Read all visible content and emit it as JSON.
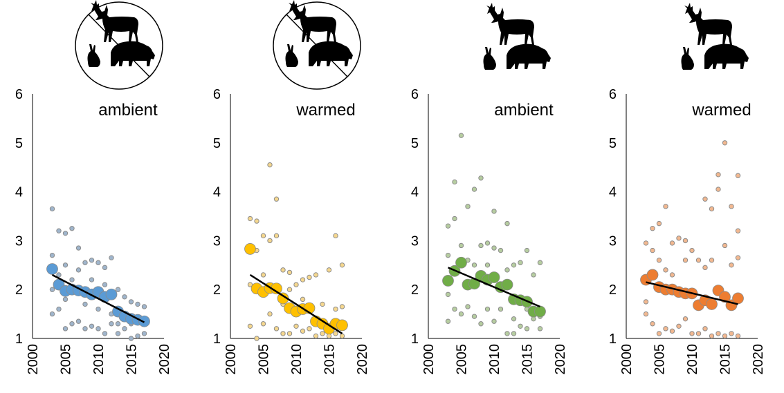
{
  "chart_data": [
    {
      "type": "scatter",
      "title": "ambient",
      "herbivores_excluded": true,
      "xlim": [
        2000,
        2020
      ],
      "xticks": [
        2000,
        2005,
        2010,
        2015,
        2020
      ],
      "ylim": [
        1,
        6
      ],
      "yticks": [
        1,
        2,
        3,
        4,
        5,
        6
      ],
      "series": [
        {
          "color": "#9fb5cc",
          "x": [
            2003,
            2003,
            2003,
            2003,
            2004,
            2004,
            2004,
            2005,
            2005,
            2005,
            2005,
            2006,
            2006,
            2006,
            2007,
            2007,
            2007,
            2008,
            2008,
            2008,
            2009,
            2009,
            2009,
            2010,
            2010,
            2010,
            2011,
            2011,
            2011,
            2012,
            2012,
            2012,
            2013,
            2013,
            2013,
            2014,
            2014,
            2015,
            2015,
            2015,
            2016,
            2016,
            2017,
            2017
          ],
          "values": [
            3.65,
            2.0,
            1.5,
            2.7,
            3.2,
            1.6,
            2.3,
            3.15,
            1.2,
            2.5,
            1.8,
            3.25,
            1.3,
            2.2,
            2.85,
            1.35,
            2.4,
            2.55,
            1.2,
            1.7,
            2.6,
            1.25,
            2.2,
            2.55,
            1.2,
            1.6,
            2.45,
            1.1,
            2.1,
            2.65,
            1.3,
            1.5,
            2.0,
            1.1,
            1.3,
            1.85,
            1.2,
            1.75,
            1.0,
            1.3,
            1.7,
            1.05,
            1.65,
            1.1
          ]
        },
        {
          "color": "#5b9bd5",
          "x": [
            2003,
            2004,
            2005,
            2006,
            2007,
            2008,
            2009,
            2010,
            2011,
            2012,
            2013,
            2014,
            2015,
            2016,
            2017
          ],
          "values": [
            2.42,
            2.1,
            1.97,
            2.0,
            1.98,
            1.95,
            1.9,
            1.95,
            1.85,
            1.9,
            1.55,
            1.45,
            1.4,
            1.38,
            1.35
          ]
        }
      ],
      "trend": {
        "color": "#000000",
        "x": [
          2003,
          2017
        ],
        "values": [
          2.3,
          1.33
        ]
      }
    },
    {
      "type": "scatter",
      "title": "warmed",
      "herbivores_excluded": true,
      "xlim": [
        2000,
        2020
      ],
      "xticks": [
        2000,
        2005,
        2010,
        2015,
        2020
      ],
      "ylim": [
        1,
        6
      ],
      "yticks": [
        1,
        2,
        3,
        4,
        5,
        6
      ],
      "series": [
        {
          "color": "#f5d78e",
          "x": [
            2003,
            2003,
            2003,
            2004,
            2004,
            2004,
            2005,
            2005,
            2005,
            2006,
            2006,
            2006,
            2007,
            2007,
            2007,
            2008,
            2008,
            2008,
            2009,
            2009,
            2009,
            2010,
            2010,
            2011,
            2011,
            2011,
            2012,
            2012,
            2013,
            2013,
            2014,
            2014,
            2015,
            2015,
            2016,
            2016,
            2016,
            2017,
            2017,
            2017
          ],
          "values": [
            3.45,
            2.1,
            1.25,
            3.4,
            1.0,
            2.8,
            3.1,
            1.3,
            2.3,
            4.55,
            3.0,
            1.5,
            3.85,
            3.1,
            1.2,
            2.4,
            1.1,
            1.7,
            2.35,
            1.1,
            2.0,
            2.1,
            1.25,
            2.2,
            1.15,
            1.8,
            2.25,
            1.2,
            2.3,
            1.05,
            1.7,
            1.1,
            2.4,
            1.05,
            3.1,
            1.1,
            1.6,
            2.5,
            1.65,
            1.05
          ]
        },
        {
          "color": "#ffc000",
          "x": [
            2003,
            2004,
            2005,
            2006,
            2007,
            2008,
            2009,
            2010,
            2011,
            2012,
            2013,
            2014,
            2015,
            2016,
            2017
          ],
          "values": [
            2.83,
            2.02,
            1.95,
            2.03,
            2.02,
            1.82,
            1.62,
            1.55,
            1.6,
            1.62,
            1.35,
            1.3,
            1.2,
            1.3,
            1.27
          ]
        }
      ],
      "trend": {
        "color": "#000000",
        "x": [
          2003,
          2017
        ],
        "values": [
          2.3,
          1.1
        ]
      }
    },
    {
      "type": "scatter",
      "title": "ambient",
      "herbivores_excluded": false,
      "xlim": [
        2000,
        2020
      ],
      "xticks": [
        2000,
        2005,
        2010,
        2015,
        2020
      ],
      "ylim": [
        1,
        6
      ],
      "yticks": [
        1,
        2,
        3,
        4,
        5,
        6
      ],
      "series": [
        {
          "color": "#b6cda0",
          "x": [
            2003,
            2003,
            2003,
            2003,
            2004,
            2004,
            2004,
            2005,
            2005,
            2005,
            2006,
            2006,
            2006,
            2007,
            2007,
            2007,
            2008,
            2008,
            2008,
            2009,
            2009,
            2009,
            2010,
            2010,
            2010,
            2011,
            2011,
            2012,
            2012,
            2012,
            2013,
            2013,
            2013,
            2014,
            2014,
            2015,
            2015,
            2015,
            2016,
            2016,
            2017,
            2017,
            2017
          ],
          "values": [
            3.3,
            2.7,
            1.35,
            1.9,
            4.2,
            3.45,
            1.6,
            5.15,
            2.9,
            1.5,
            3.7,
            2.6,
            1.65,
            4.05,
            1.45,
            2.5,
            4.28,
            2.9,
            1.3,
            2.95,
            1.6,
            2.5,
            3.6,
            2.85,
            1.35,
            2.8,
            1.6,
            3.35,
            1.1,
            2.4,
            2.5,
            1.1,
            1.4,
            2.55,
            1.25,
            2.8,
            1.6,
            1.2,
            2.3,
            1.4,
            2.55,
            1.45,
            1.2
          ]
        },
        {
          "color": "#70ad47",
          "x": [
            2003,
            2004,
            2005,
            2006,
            2007,
            2008,
            2009,
            2010,
            2011,
            2012,
            2013,
            2014,
            2015,
            2016,
            2017
          ],
          "values": [
            2.18,
            2.38,
            2.55,
            2.1,
            2.12,
            2.28,
            2.2,
            2.25,
            2.05,
            2.1,
            1.8,
            1.78,
            1.75,
            1.55,
            1.55
          ]
        }
      ],
      "trend": {
        "color": "#000000",
        "x": [
          2003,
          2017
        ],
        "values": [
          2.45,
          1.65
        ]
      }
    },
    {
      "type": "scatter",
      "title": "warmed",
      "herbivores_excluded": false,
      "xlim": [
        2000,
        2020
      ],
      "xticks": [
        2000,
        2005,
        2010,
        2015,
        2020
      ],
      "ylim": [
        1,
        6
      ],
      "yticks": [
        1,
        2,
        3,
        4,
        5,
        6
      ],
      "series": [
        {
          "color": "#f2b890",
          "x": [
            2003,
            2003,
            2003,
            2004,
            2004,
            2004,
            2005,
            2005,
            2005,
            2006,
            2006,
            2006,
            2007,
            2007,
            2007,
            2008,
            2008,
            2009,
            2009,
            2009,
            2010,
            2010,
            2011,
            2011,
            2012,
            2012,
            2012,
            2013,
            2013,
            2013,
            2014,
            2014,
            2014,
            2015,
            2015,
            2015,
            2016,
            2016,
            2016,
            2017,
            2017,
            2017,
            2017
          ],
          "values": [
            2.95,
            1.75,
            1.5,
            3.25,
            2.8,
            1.3,
            3.35,
            1.1,
            2.6,
            3.7,
            1.2,
            2.4,
            2.95,
            1.15,
            2.3,
            3.05,
            1.25,
            3.0,
            1.4,
            2.6,
            2.8,
            1.1,
            2.6,
            1.1,
            3.85,
            1.2,
            2.45,
            3.65,
            1.05,
            2.6,
            4.05,
            4.35,
            1.1,
            5.0,
            1.05,
            2.9,
            3.7,
            1.1,
            2.5,
            4.33,
            3.2,
            1.05,
            2.65
          ]
        },
        {
          "color": "#ed7d31",
          "x": [
            2003,
            2004,
            2005,
            2006,
            2007,
            2008,
            2009,
            2010,
            2011,
            2012,
            2013,
            2014,
            2015,
            2016,
            2017
          ],
          "values": [
            2.2,
            2.3,
            2.05,
            2.0,
            2.0,
            1.95,
            1.92,
            1.92,
            1.68,
            1.78,
            1.7,
            1.98,
            1.85,
            1.68,
            1.82
          ]
        }
      ],
      "trend": {
        "color": "#000000",
        "x": [
          2003,
          2017
        ],
        "values": [
          2.15,
          1.7
        ]
      }
    }
  ]
}
